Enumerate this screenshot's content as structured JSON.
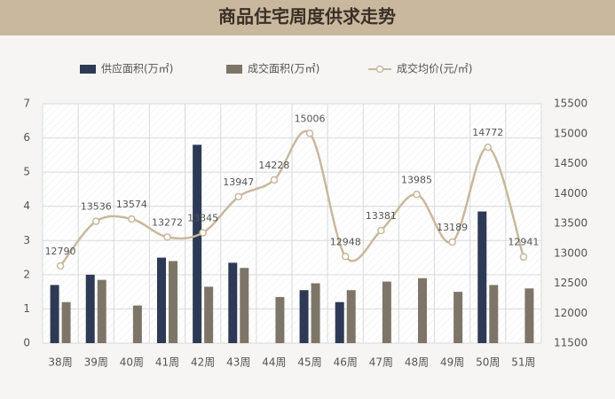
{
  "chart_data": {
    "type": "bar",
    "title": "商品住宅周度供求走势",
    "categories": [
      "38周",
      "39周",
      "40周",
      "41周",
      "42周",
      "43周",
      "44周",
      "45周",
      "46周",
      "47周",
      "48周",
      "49周",
      "50周",
      "51周"
    ],
    "series": [
      {
        "name": "供应面积(万㎡)",
        "color": "#2e3a55",
        "values": [
          1.7,
          2.0,
          null,
          2.5,
          5.8,
          2.35,
          null,
          1.55,
          1.2,
          null,
          null,
          null,
          3.85,
          null
        ]
      },
      {
        "name": "成交面积(万㎡)",
        "color": "#7d7668",
        "values": [
          1.2,
          1.85,
          1.1,
          2.4,
          1.65,
          2.2,
          1.35,
          1.75,
          1.55,
          1.8,
          1.9,
          1.5,
          1.7,
          1.6
        ]
      },
      {
        "name": "成交均价(元/㎡)",
        "color": "#c9b89e",
        "type": "line",
        "axis": "y2",
        "values": [
          12790,
          13536,
          13574,
          13272,
          13345,
          13947,
          14228,
          15006,
          12948,
          13381,
          13985,
          13189,
          14772,
          12941
        ]
      }
    ],
    "ylim": [
      0,
      7
    ],
    "yticks": [
      0,
      1,
      2,
      3,
      4,
      5,
      6,
      7
    ],
    "y2lim": [
      11500,
      15500
    ],
    "y2ticks": [
      11500,
      12000,
      12500,
      13000,
      13500,
      14000,
      14500,
      15000,
      15500
    ],
    "grid": true
  }
}
